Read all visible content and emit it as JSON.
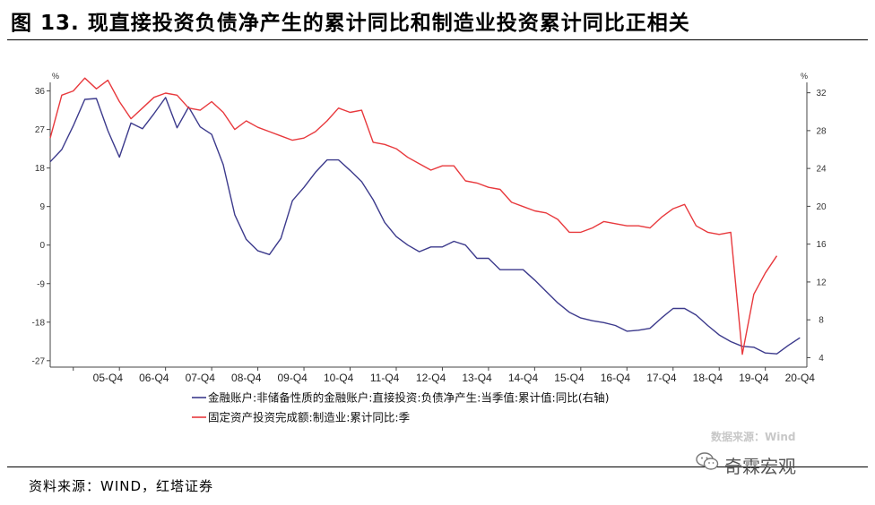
{
  "figure": {
    "title": "图 13. 现直接投资负债净产生的累计同比和制造业投资累计同比正相关",
    "source": "资料来源：WIND，红塔证券",
    "watermark": "数据来源：Wind",
    "brand": "奇霖宏观"
  },
  "chart_data": {
    "type": "line",
    "x_tick_labels": [
      "05-Q4",
      "06-Q4",
      "07-Q4",
      "08-Q4",
      "09-Q4",
      "10-Q4",
      "11-Q4",
      "12-Q4",
      "13-Q4",
      "14-Q4",
      "15-Q4",
      "16-Q4",
      "17-Q4",
      "18-Q4",
      "19-Q4",
      "20-Q4"
    ],
    "x_range": [
      2004.5,
      2020.9
    ],
    "left_axis": {
      "unit": "%",
      "ticks": [
        36,
        27,
        18,
        9,
        0,
        -9,
        -18,
        -27
      ],
      "range": [
        -28.5,
        38
      ]
    },
    "right_axis": {
      "unit": "%",
      "ticks": [
        32,
        28,
        24,
        20,
        16,
        12,
        8,
        4
      ],
      "range": [
        3.0,
        33.1
      ]
    },
    "series": [
      {
        "name": "金融账户:非储备性质的金融账户:直接投资:负债净产生:当季值:累计值:同比(右轴)",
        "axis": "right",
        "color": "#3c3a8c",
        "points": [
          [
            2004.5,
            24.7
          ],
          [
            2004.75,
            26.0
          ],
          [
            2005.0,
            28.5
          ],
          [
            2005.25,
            31.3
          ],
          [
            2005.5,
            31.4
          ],
          [
            2005.75,
            28.0
          ],
          [
            2006.0,
            25.2
          ],
          [
            2006.25,
            28.8
          ],
          [
            2006.5,
            28.2
          ],
          [
            2006.75,
            29.8
          ],
          [
            2007.0,
            31.5
          ],
          [
            2007.25,
            28.3
          ],
          [
            2007.5,
            30.5
          ],
          [
            2007.75,
            28.4
          ],
          [
            2008.0,
            27.6
          ],
          [
            2008.25,
            24.4
          ],
          [
            2008.5,
            19.1
          ],
          [
            2008.75,
            16.5
          ],
          [
            2009.0,
            15.3
          ],
          [
            2009.25,
            14.9
          ],
          [
            2009.5,
            16.6
          ],
          [
            2009.75,
            20.6
          ],
          [
            2010.0,
            22.0
          ],
          [
            2010.25,
            23.6
          ],
          [
            2010.5,
            24.9
          ],
          [
            2010.75,
            24.9
          ],
          [
            2011.0,
            23.8
          ],
          [
            2011.25,
            22.6
          ],
          [
            2011.5,
            20.7
          ],
          [
            2011.75,
            18.3
          ],
          [
            2012.0,
            16.8
          ],
          [
            2012.25,
            15.9
          ],
          [
            2012.5,
            15.2
          ],
          [
            2012.75,
            15.7
          ],
          [
            2013.0,
            15.7
          ],
          [
            2013.25,
            16.3
          ],
          [
            2013.5,
            15.9
          ],
          [
            2013.75,
            14.5
          ],
          [
            2014.0,
            14.5
          ],
          [
            2014.25,
            13.3
          ],
          [
            2014.5,
            13.3
          ],
          [
            2014.75,
            13.3
          ],
          [
            2015.0,
            12.2
          ],
          [
            2015.25,
            11.0
          ],
          [
            2015.5,
            9.8
          ],
          [
            2015.75,
            8.8
          ],
          [
            2016.0,
            8.2
          ],
          [
            2016.25,
            7.9
          ],
          [
            2016.5,
            7.7
          ],
          [
            2016.75,
            7.4
          ],
          [
            2017.0,
            6.8
          ],
          [
            2017.25,
            6.9
          ],
          [
            2017.5,
            7.1
          ],
          [
            2017.75,
            8.2
          ],
          [
            2018.0,
            9.2
          ],
          [
            2018.25,
            9.2
          ],
          [
            2018.5,
            8.5
          ],
          [
            2018.75,
            7.4
          ],
          [
            2019.0,
            6.4
          ],
          [
            2019.25,
            5.7
          ],
          [
            2019.5,
            5.2
          ],
          [
            2019.75,
            5.1
          ],
          [
            2020.0,
            4.5
          ],
          [
            2020.25,
            4.4
          ],
          [
            2020.5,
            5.3
          ],
          [
            2020.75,
            6.1
          ]
        ]
      },
      {
        "name": "固定资产投资完成额:制造业:累计同比:季",
        "axis": "left",
        "color": "#e8393d",
        "points": [
          [
            2004.5,
            25.0
          ],
          [
            2004.75,
            35.0
          ],
          [
            2005.0,
            36.0
          ],
          [
            2005.25,
            39.0
          ],
          [
            2005.5,
            36.5
          ],
          [
            2005.75,
            38.5
          ],
          [
            2006.0,
            33.5
          ],
          [
            2006.25,
            29.5
          ],
          [
            2006.5,
            32.0
          ],
          [
            2006.75,
            34.5
          ],
          [
            2007.0,
            35.5
          ],
          [
            2007.25,
            35.0
          ],
          [
            2007.5,
            32.0
          ],
          [
            2007.75,
            31.5
          ],
          [
            2008.0,
            33.5
          ],
          [
            2008.25,
            31.0
          ],
          [
            2008.5,
            27.0
          ],
          [
            2008.75,
            29.0
          ],
          [
            2009.0,
            27.5
          ],
          [
            2009.25,
            26.5
          ],
          [
            2009.5,
            25.5
          ],
          [
            2009.75,
            24.5
          ],
          [
            2010.0,
            25.0
          ],
          [
            2010.25,
            26.5
          ],
          [
            2010.5,
            29.0
          ],
          [
            2010.75,
            32.0
          ],
          [
            2011.0,
            31.0
          ],
          [
            2011.25,
            31.5
          ],
          [
            2011.5,
            24.0
          ],
          [
            2011.75,
            23.5
          ],
          [
            2012.0,
            22.5
          ],
          [
            2012.25,
            20.5
          ],
          [
            2012.5,
            19.0
          ],
          [
            2012.75,
            17.5
          ],
          [
            2013.0,
            18.5
          ],
          [
            2013.25,
            18.5
          ],
          [
            2013.5,
            15.0
          ],
          [
            2013.75,
            14.5
          ],
          [
            2014.0,
            13.5
          ],
          [
            2014.25,
            13.0
          ],
          [
            2014.5,
            10.0
          ],
          [
            2014.75,
            9.0
          ],
          [
            2015.0,
            8.0
          ],
          [
            2015.25,
            7.5
          ],
          [
            2015.5,
            6.0
          ],
          [
            2015.75,
            3.0
          ],
          [
            2016.0,
            3.0
          ],
          [
            2016.25,
            4.0
          ],
          [
            2016.5,
            5.5
          ],
          [
            2016.75,
            5.0
          ],
          [
            2017.0,
            4.5
          ],
          [
            2017.25,
            4.5
          ],
          [
            2017.5,
            4.0
          ],
          [
            2017.75,
            6.5
          ],
          [
            2018.0,
            8.5
          ],
          [
            2018.25,
            9.5
          ],
          [
            2018.5,
            4.5
          ],
          [
            2018.75,
            3.0
          ],
          [
            2019.0,
            2.5
          ],
          [
            2019.25,
            3.0
          ],
          [
            2019.5,
            -25.5
          ],
          [
            2019.75,
            -11.5
          ],
          [
            2020.0,
            -6.5
          ],
          [
            2020.25,
            -2.5
          ]
        ]
      }
    ]
  }
}
